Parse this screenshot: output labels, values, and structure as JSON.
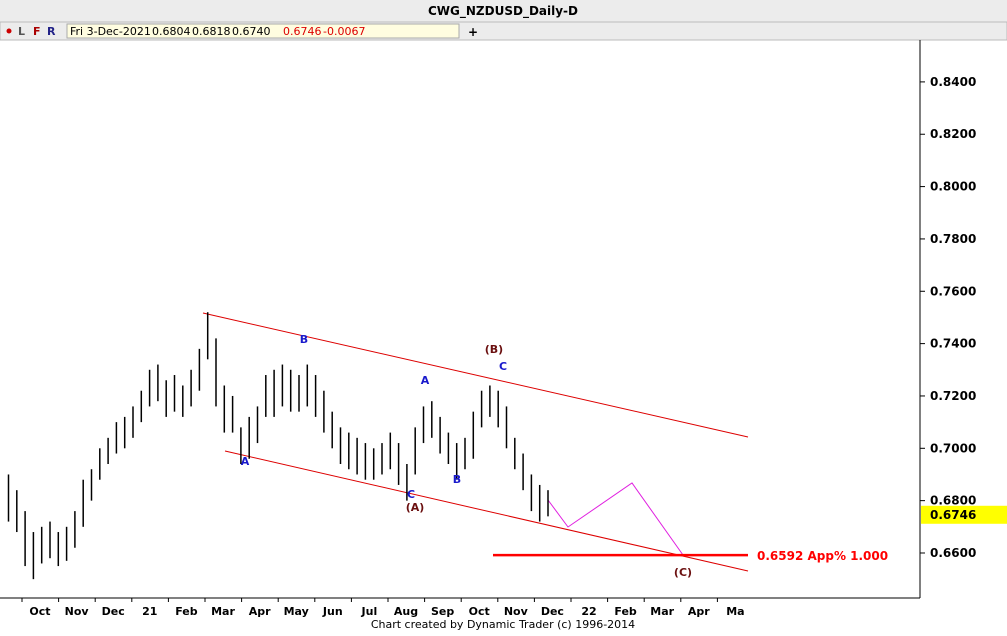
{
  "header": {
    "title": "CWG_NZDUSD_Daily-D",
    "toolbar": [
      "L",
      "F",
      "R"
    ],
    "plus": "+",
    "info": [
      "Fri 3-Dec-2021",
      "0.6804",
      "0.6818",
      "0.6740",
      "0.6746",
      "-0.0067"
    ]
  },
  "chart_data": {
    "type": "ohlc",
    "ylim": [
      0.6428,
      0.8541
    ],
    "yticks": [
      {
        "value": 0.66,
        "label": "0.6600"
      },
      {
        "value": 0.68,
        "label": "0.6800"
      },
      {
        "value": 0.7,
        "label": "0.7000"
      },
      {
        "value": 0.72,
        "label": "0.7200"
      },
      {
        "value": 0.74,
        "label": "0.7400"
      },
      {
        "value": 0.76,
        "label": "0.7600"
      },
      {
        "value": 0.78,
        "label": "0.7800"
      },
      {
        "value": 0.8,
        "label": "0.8000"
      },
      {
        "value": 0.82,
        "label": "0.8200"
      },
      {
        "value": 0.84,
        "label": "0.8400"
      }
    ],
    "xtick_labels": [
      "Oct",
      "Nov",
      "Dec",
      "21",
      "Feb",
      "Mar",
      "Apr",
      "May",
      "Jun",
      "Jul",
      "Aug",
      "Sep",
      "Oct",
      "Nov",
      "Dec",
      "22",
      "Feb",
      "Mar",
      "Apr",
      "Ma"
    ],
    "color": "#000000",
    "high": [
      0.69,
      0.684,
      0.676,
      0.668,
      0.67,
      0.672,
      0.668,
      0.67,
      0.676,
      0.688,
      0.692,
      0.7,
      0.704,
      0.71,
      0.712,
      0.716,
      0.722,
      0.73,
      0.732,
      0.726,
      0.728,
      0.724,
      0.73,
      0.738,
      0.752,
      0.742,
      0.724,
      0.72,
      0.708,
      0.712,
      0.716,
      0.728,
      0.73,
      0.732,
      0.73,
      0.728,
      0.732,
      0.728,
      0.722,
      0.714,
      0.708,
      0.706,
      0.704,
      0.702,
      0.7,
      0.702,
      0.706,
      0.702,
      0.694,
      0.708,
      0.716,
      0.718,
      0.712,
      0.706,
      0.702,
      0.704,
      0.714,
      0.722,
      0.724,
      0.722,
      0.716,
      0.704,
      0.698,
      0.69,
      0.686,
      0.684
    ],
    "low": [
      0.672,
      0.668,
      0.655,
      0.65,
      0.656,
      0.658,
      0.655,
      0.657,
      0.662,
      0.67,
      0.68,
      0.688,
      0.694,
      0.698,
      0.7,
      0.704,
      0.71,
      0.716,
      0.718,
      0.712,
      0.714,
      0.712,
      0.716,
      0.722,
      0.734,
      0.716,
      0.706,
      0.706,
      0.694,
      0.696,
      0.702,
      0.712,
      0.712,
      0.716,
      0.714,
      0.714,
      0.716,
      0.712,
      0.706,
      0.7,
      0.694,
      0.692,
      0.69,
      0.688,
      0.688,
      0.69,
      0.692,
      0.686,
      0.68,
      0.69,
      0.702,
      0.704,
      0.698,
      0.694,
      0.688,
      0.692,
      0.696,
      0.708,
      0.712,
      0.708,
      0.7,
      0.692,
      0.684,
      0.676,
      0.672,
      0.674
    ],
    "last_price": {
      "value": 0.6746,
      "label": "0.6746"
    },
    "target": {
      "value": 0.6592,
      "label": "0.6592 App% 1.000",
      "color": "#ff0000"
    },
    "annotations": [
      {
        "text": "B",
        "color": "#1a1acc"
      },
      {
        "text": "A",
        "color": "#1a1acc"
      },
      {
        "text": "A",
        "color": "#1a1acc"
      },
      {
        "text": "C",
        "color": "#1a1acc"
      },
      {
        "text": "B",
        "color": "#1a1acc"
      },
      {
        "text": "(A)",
        "color": "#6b1010"
      },
      {
        "text": "(B)",
        "color": "#6b1010"
      },
      {
        "text": "C",
        "color": "#1a1acc"
      },
      {
        "text": "(C)",
        "color": "#6b1010"
      }
    ]
  },
  "footer": "Chart created by Dynamic Trader  (c) 1996-2014"
}
